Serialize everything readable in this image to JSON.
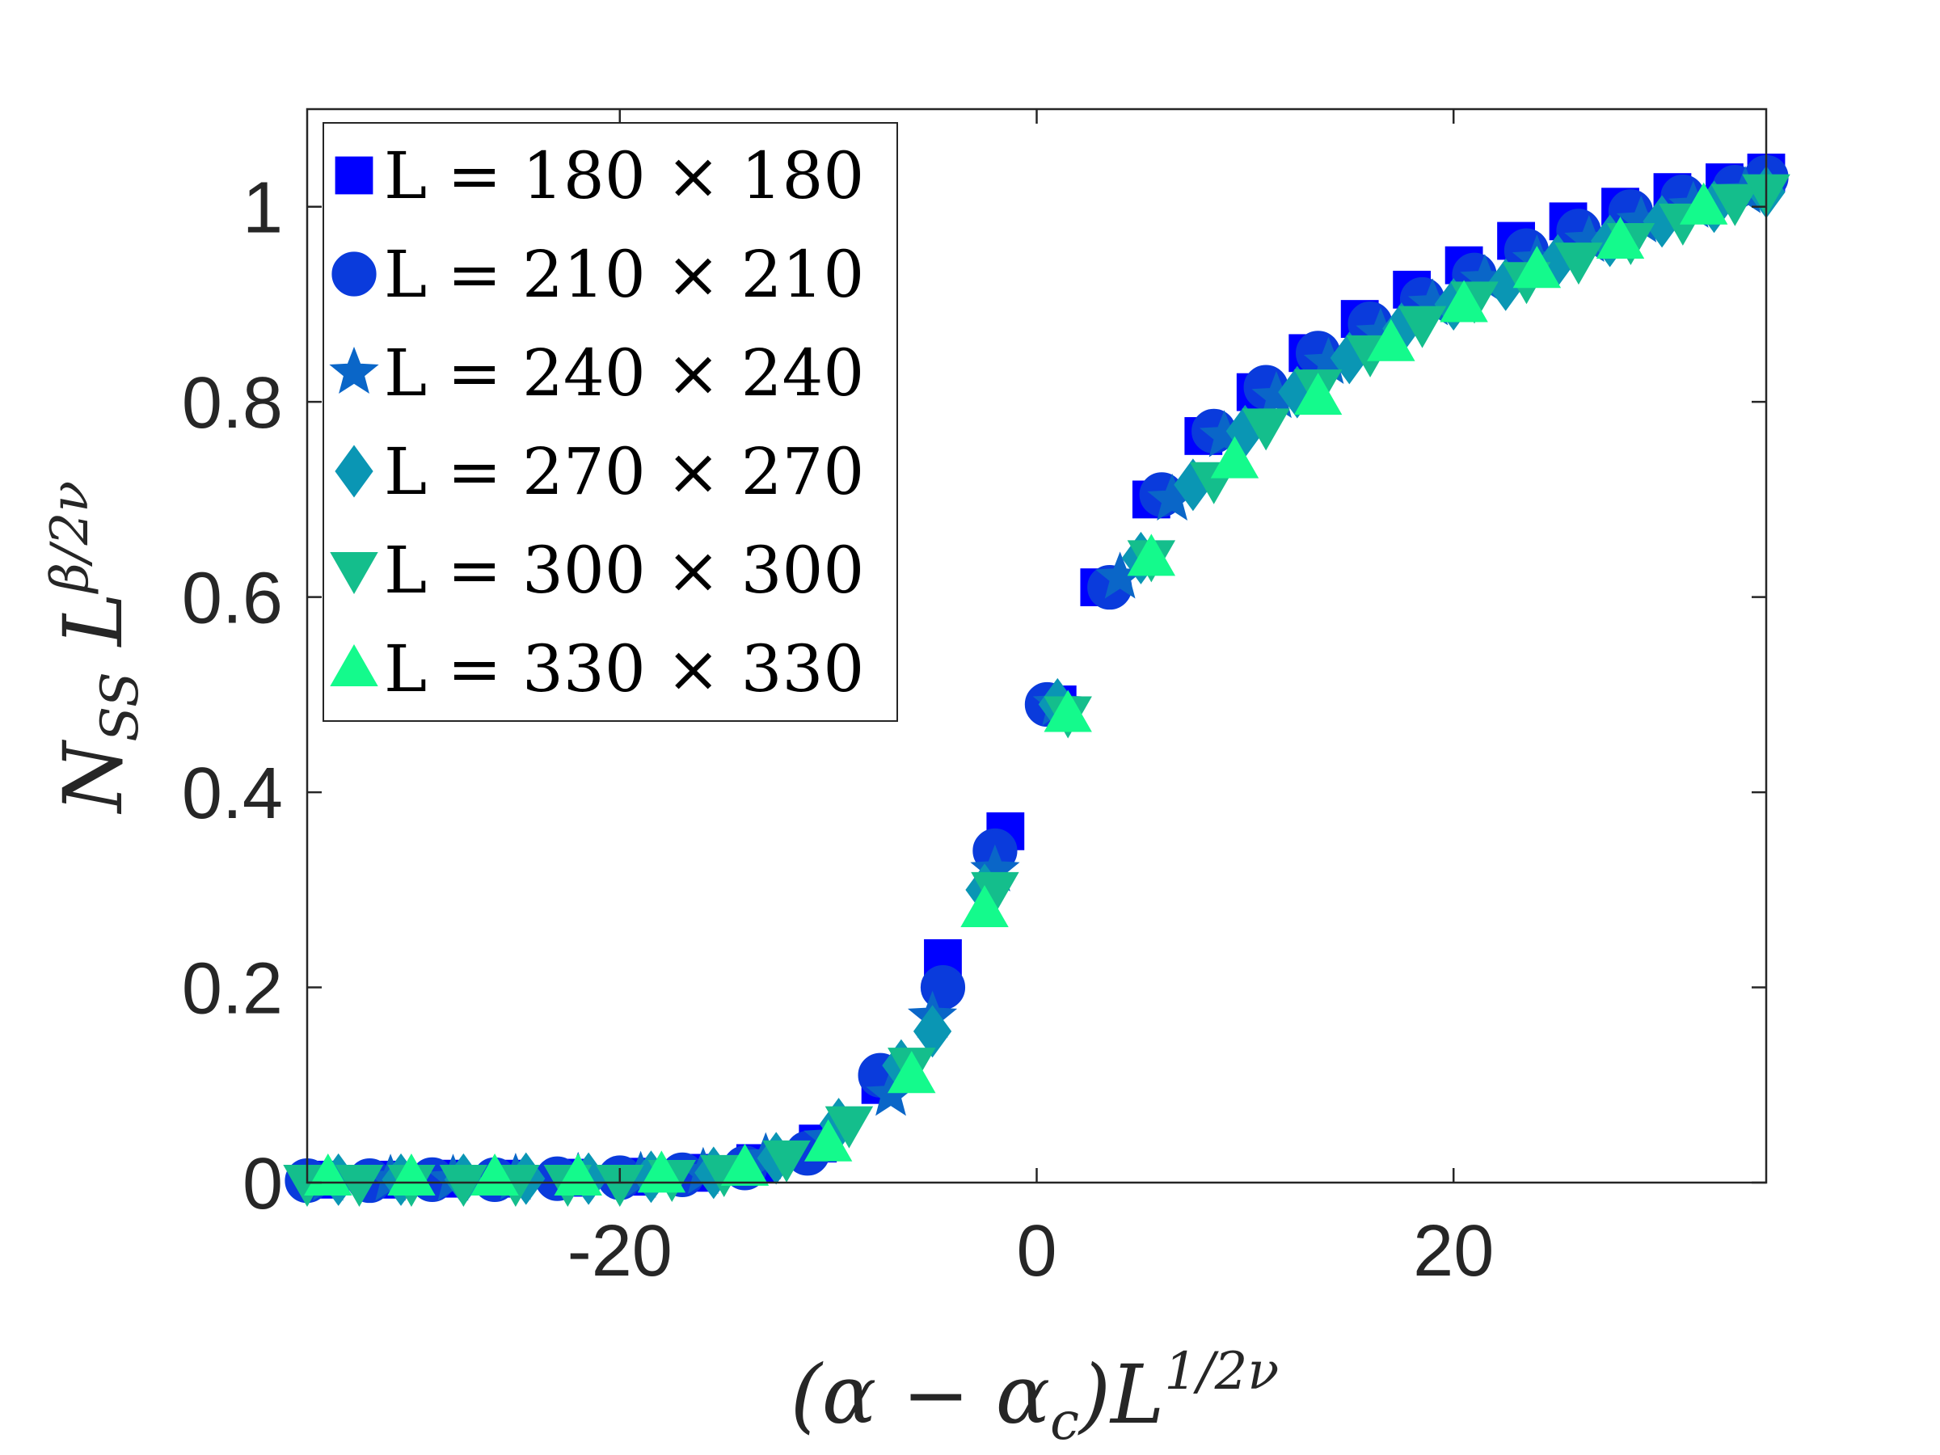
{
  "chart_data": {
    "type": "scatter",
    "xlabel": {
      "main": "(α − α",
      "sub": "c",
      "close": ")L",
      "sup": "1/2ν"
    },
    "ylabel": {
      "main": "N",
      "sub": "SS",
      "mid": " L",
      "sup": "β/2ν"
    },
    "xlim": [
      -35,
      35
    ],
    "ylim": [
      0,
      1.1
    ],
    "xticks": [
      -20,
      0,
      20
    ],
    "xtick_labels": [
      "-20",
      "0",
      "20"
    ],
    "yticks": [
      0,
      0.2,
      0.4,
      0.6,
      0.8,
      1
    ],
    "ytick_labels": [
      "0",
      "0.2",
      "0.4",
      "0.6",
      "0.8",
      "1"
    ],
    "grid": false,
    "legend_position": "top-left",
    "series": [
      {
        "name": "L = 180 × 180",
        "marker": "square",
        "color": "#0000FF",
        "points": [
          [
            -34.5,
            0.003
          ],
          [
            -31.5,
            0.003
          ],
          [
            -28.5,
            0.004
          ],
          [
            -25.5,
            0.004
          ],
          [
            -22.5,
            0.005
          ],
          [
            -19.5,
            0.006
          ],
          [
            -16.5,
            0.01
          ],
          [
            -13.5,
            0.02
          ],
          [
            -10.5,
            0.04
          ],
          [
            -7.5,
            0.1
          ],
          [
            -4.5,
            0.23
          ],
          [
            -1.5,
            0.36
          ],
          [
            1.0,
            0.49
          ],
          [
            3.0,
            0.61
          ],
          [
            5.5,
            0.7
          ],
          [
            8.0,
            0.765
          ],
          [
            10.5,
            0.81
          ],
          [
            13.0,
            0.85
          ],
          [
            15.5,
            0.885
          ],
          [
            18.0,
            0.915
          ],
          [
            20.5,
            0.94
          ],
          [
            23.0,
            0.965
          ],
          [
            25.5,
            0.985
          ],
          [
            28.0,
            1.0
          ],
          [
            30.5,
            1.015
          ],
          [
            33.0,
            1.025
          ],
          [
            35.0,
            1.035
          ]
        ]
      },
      {
        "name": "L = 210 × 210",
        "marker": "circle",
        "color": "#0A3BDC",
        "points": [
          [
            -35.0,
            0.002
          ],
          [
            -32.0,
            0.002
          ],
          [
            -29.0,
            0.003
          ],
          [
            -26.0,
            0.003
          ],
          [
            -23.0,
            0.004
          ],
          [
            -20.0,
            0.005
          ],
          [
            -17.0,
            0.008
          ],
          [
            -14.0,
            0.015
          ],
          [
            -11.0,
            0.03
          ],
          [
            -7.5,
            0.11
          ],
          [
            -4.5,
            0.2
          ],
          [
            -2.0,
            0.34
          ],
          [
            0.5,
            0.49
          ],
          [
            3.5,
            0.61
          ],
          [
            6.0,
            0.705
          ],
          [
            8.5,
            0.77
          ],
          [
            11.0,
            0.815
          ],
          [
            13.5,
            0.85
          ],
          [
            16.0,
            0.88
          ],
          [
            18.5,
            0.905
          ],
          [
            21.0,
            0.93
          ],
          [
            23.5,
            0.955
          ],
          [
            26.0,
            0.975
          ],
          [
            28.5,
            0.995
          ],
          [
            31.0,
            1.01
          ],
          [
            33.5,
            1.02
          ],
          [
            35.0,
            1.03
          ]
        ]
      },
      {
        "name": "L = 240 × 240",
        "marker": "star",
        "color": "#0A66C8",
        "points": [
          [
            -34.0,
            0.003
          ],
          [
            -31.0,
            0.003
          ],
          [
            -28.0,
            0.003
          ],
          [
            -25.0,
            0.004
          ],
          [
            -22.0,
            0.005
          ],
          [
            -19.0,
            0.006
          ],
          [
            -16.0,
            0.01
          ],
          [
            -13.0,
            0.025
          ],
          [
            -10.0,
            0.045
          ],
          [
            -7.0,
            0.09
          ],
          [
            -5.0,
            0.17
          ],
          [
            -2.0,
            0.32
          ],
          [
            1.0,
            0.49
          ],
          [
            4.0,
            0.62
          ],
          [
            6.5,
            0.7
          ],
          [
            9.0,
            0.765
          ],
          [
            11.5,
            0.805
          ],
          [
            14.0,
            0.84
          ],
          [
            16.5,
            0.87
          ],
          [
            19.0,
            0.9
          ],
          [
            21.5,
            0.925
          ],
          [
            24.0,
            0.945
          ],
          [
            26.5,
            0.965
          ],
          [
            29.0,
            0.985
          ],
          [
            31.5,
            1.0
          ],
          [
            34.0,
            1.015
          ]
        ]
      },
      {
        "name": "L = 270 × 270",
        "marker": "diamond",
        "color": "#0A96B4",
        "points": [
          [
            -33.5,
            0.003
          ],
          [
            -30.5,
            0.003
          ],
          [
            -27.5,
            0.003
          ],
          [
            -24.5,
            0.004
          ],
          [
            -21.5,
            0.004
          ],
          [
            -18.5,
            0.006
          ],
          [
            -15.5,
            0.01
          ],
          [
            -12.5,
            0.025
          ],
          [
            -9.5,
            0.06
          ],
          [
            -6.5,
            0.12
          ],
          [
            -5.0,
            0.155
          ],
          [
            -2.5,
            0.3
          ],
          [
            1.0,
            0.49
          ],
          [
            5.0,
            0.64
          ],
          [
            7.5,
            0.715
          ],
          [
            10.0,
            0.77
          ],
          [
            12.5,
            0.81
          ],
          [
            15.0,
            0.845
          ],
          [
            17.5,
            0.875
          ],
          [
            20.0,
            0.9
          ],
          [
            22.5,
            0.92
          ],
          [
            25.0,
            0.945
          ],
          [
            27.5,
            0.965
          ],
          [
            30.0,
            0.985
          ],
          [
            32.5,
            1.0
          ],
          [
            35.0,
            1.015
          ]
        ]
      },
      {
        "name": "L = 300 × 300",
        "marker": "triangle-down",
        "color": "#14BE8C",
        "points": [
          [
            -35.0,
            0.0
          ],
          [
            -32.5,
            0.0
          ],
          [
            -30.0,
            0.0
          ],
          [
            -27.5,
            0.0
          ],
          [
            -25.0,
            0.0
          ],
          [
            -22.5,
            0.0
          ],
          [
            -20.0,
            0.0
          ],
          [
            -17.5,
            0.005
          ],
          [
            -15.0,
            0.01
          ],
          [
            -12.0,
            0.025
          ],
          [
            -9.0,
            0.06
          ],
          [
            -6.0,
            0.12
          ],
          [
            -2.0,
            0.3
          ],
          [
            1.5,
            0.48
          ],
          [
            5.5,
            0.64
          ],
          [
            8.5,
            0.72
          ],
          [
            11.0,
            0.775
          ],
          [
            13.5,
            0.815
          ],
          [
            16.0,
            0.85
          ],
          [
            18.5,
            0.88
          ],
          [
            21.0,
            0.905
          ],
          [
            23.5,
            0.925
          ],
          [
            26.0,
            0.945
          ],
          [
            28.5,
            0.965
          ],
          [
            31.0,
            0.985
          ],
          [
            33.5,
            1.005
          ],
          [
            35.0,
            1.015
          ]
        ]
      },
      {
        "name": "L = 330 × 330",
        "marker": "triangle-up",
        "color": "#14FA8C",
        "points": [
          [
            -34.0,
            0.005
          ],
          [
            -30.0,
            0.005
          ],
          [
            -26.0,
            0.005
          ],
          [
            -22.0,
            0.005
          ],
          [
            -18.0,
            0.008
          ],
          [
            -14.0,
            0.015
          ],
          [
            -10.0,
            0.04
          ],
          [
            -6.0,
            0.11
          ],
          [
            -2.5,
            0.28
          ],
          [
            1.5,
            0.48
          ],
          [
            5.5,
            0.64
          ],
          [
            9.5,
            0.74
          ],
          [
            13.5,
            0.805
          ],
          [
            17.0,
            0.86
          ],
          [
            20.5,
            0.9
          ],
          [
            24.0,
            0.935
          ],
          [
            28.0,
            0.965
          ],
          [
            32.0,
            1.0
          ]
        ]
      }
    ]
  }
}
